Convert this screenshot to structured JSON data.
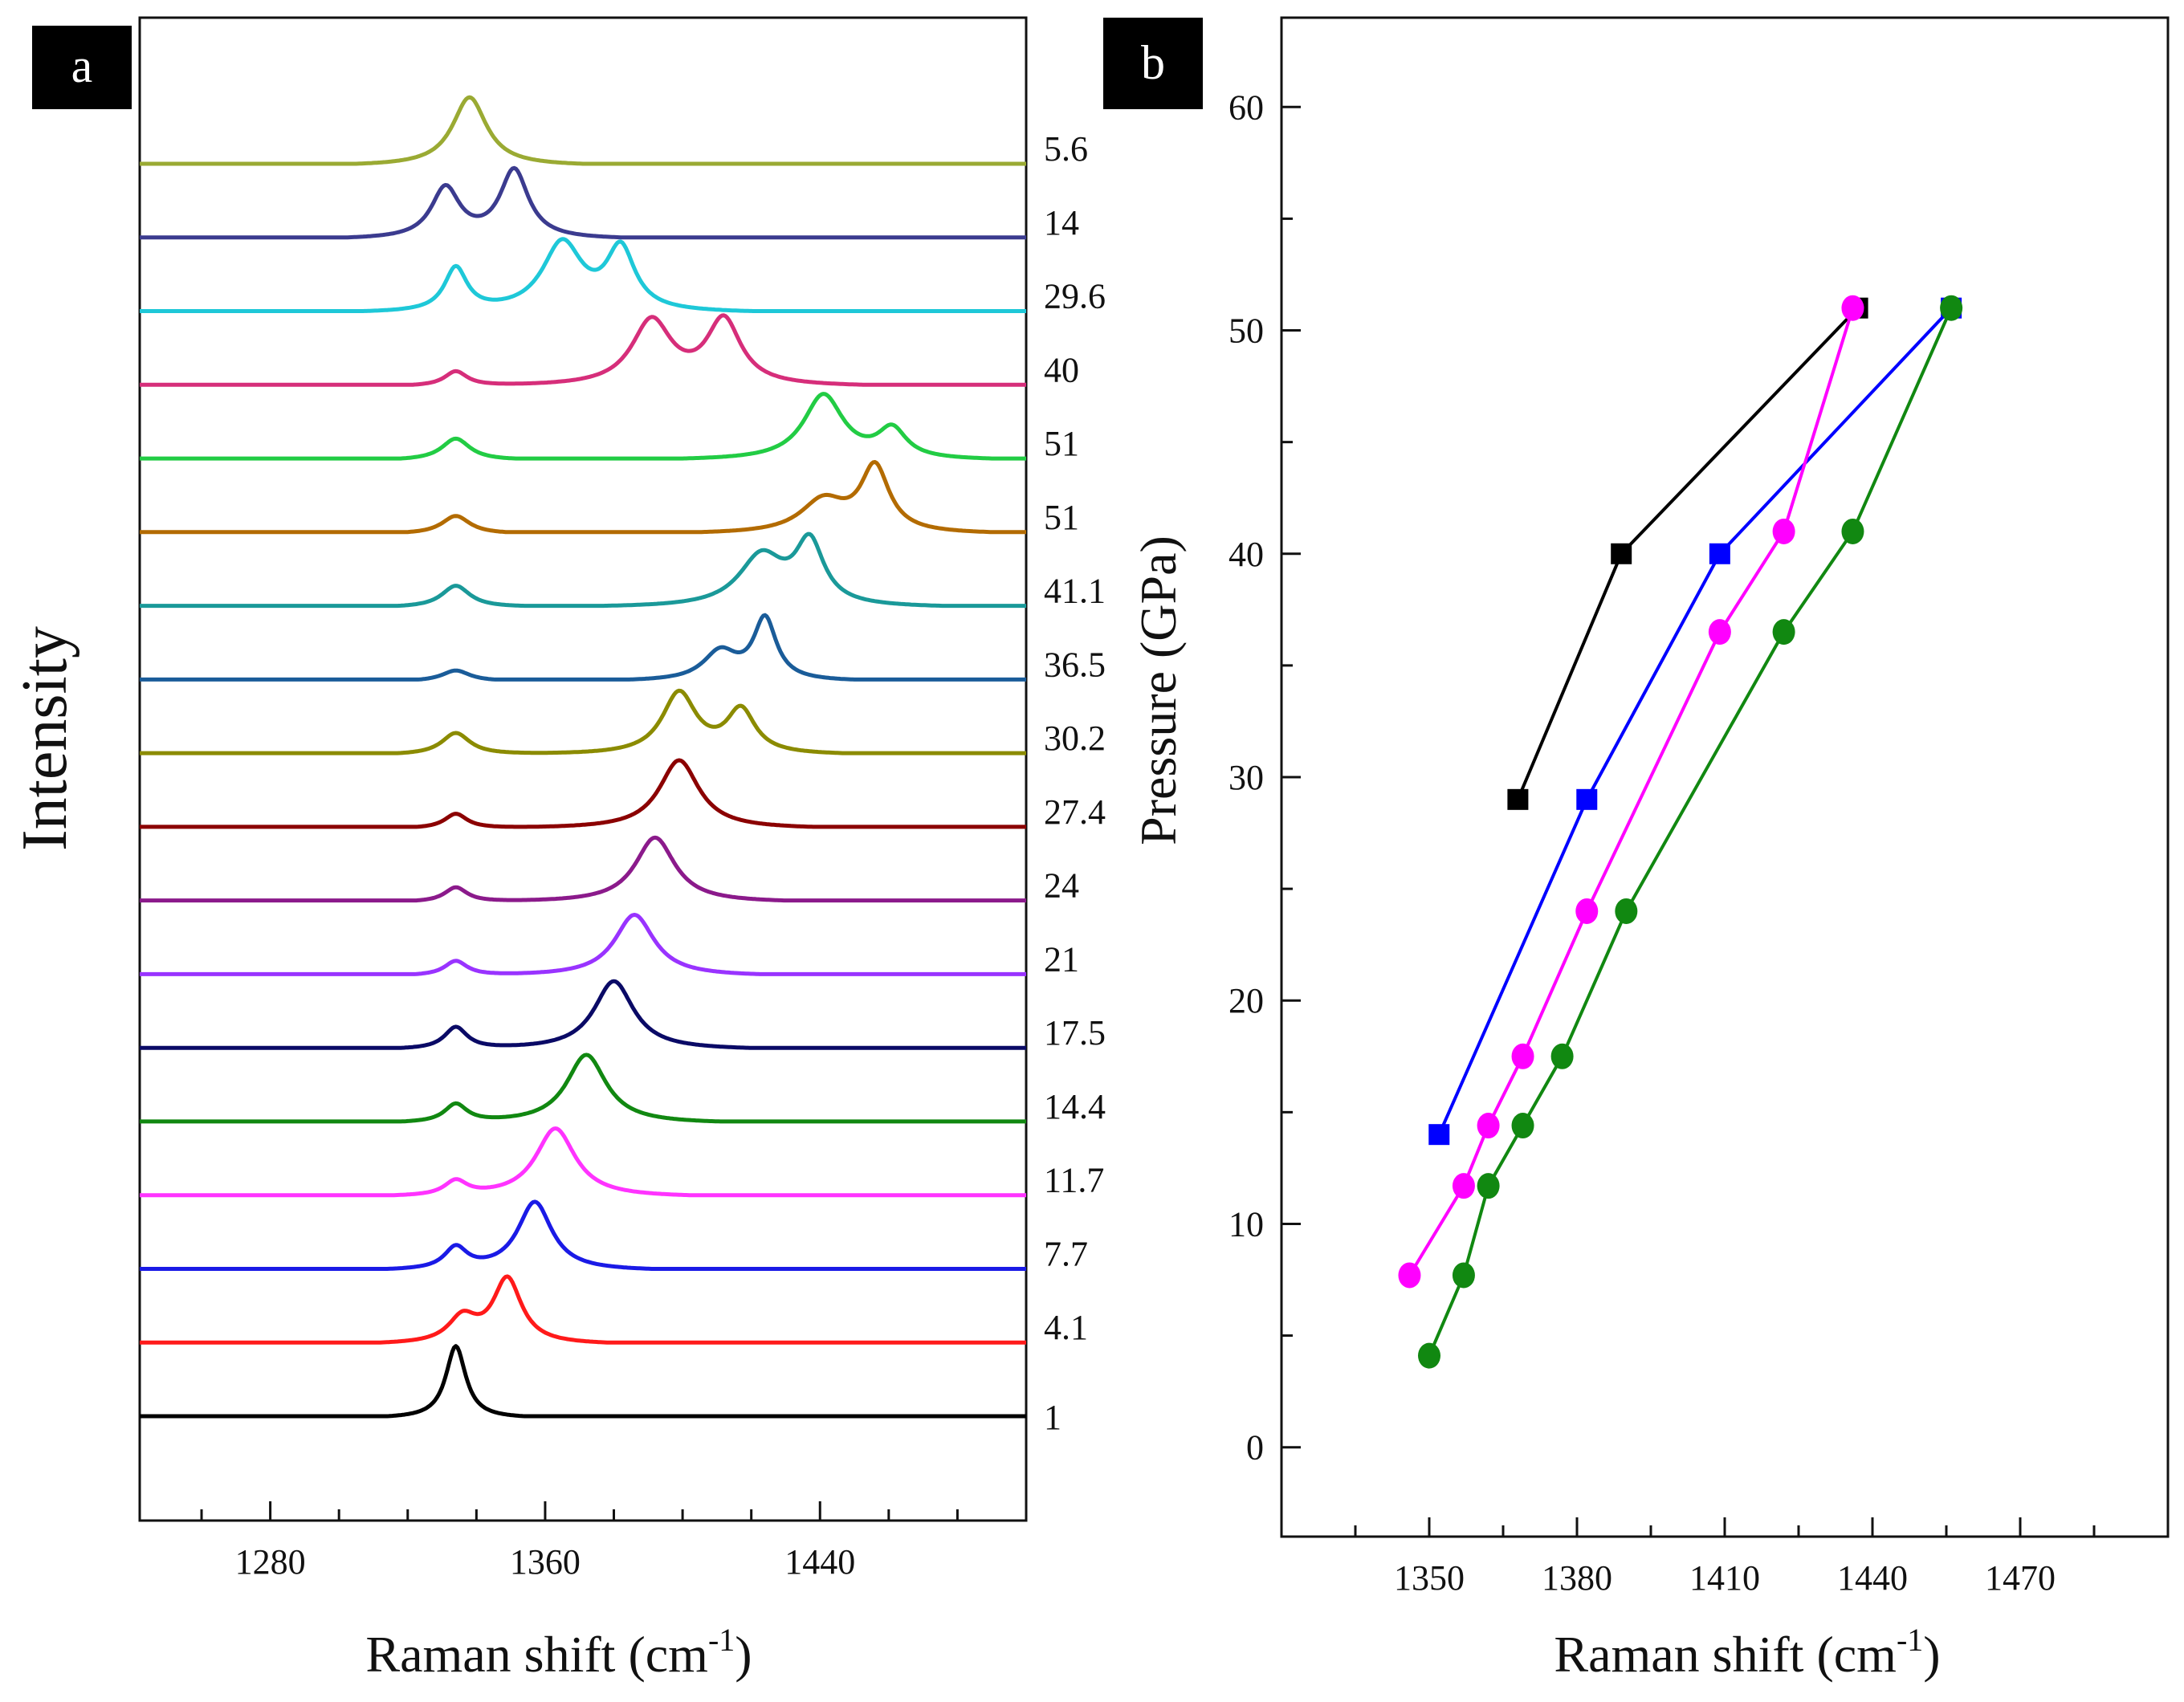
{
  "chart_data": [
    {
      "panel": "a",
      "type": "line",
      "title": "",
      "xlabel": "Raman shift (cm",
      "xlabel_sup": "-1",
      "xlabel_close": ")",
      "ylabel": "Intensity",
      "xlim": [
        1242,
        1500
      ],
      "xticks": [
        1280,
        1360,
        1440
      ],
      "grid": false,
      "series": [
        {
          "name": "1",
          "color": "#000000",
          "peaks": [
            [
              1334,
              1.0,
              3.5
            ]
          ]
        },
        {
          "name": "4.1",
          "color": "#ff1a1a",
          "peaks": [
            [
              1336,
              0.35,
              5
            ],
            [
              1349,
              0.9,
              5
            ]
          ]
        },
        {
          "name": "7.7",
          "color": "#1a1ae6",
          "peaks": [
            [
              1334,
              0.3,
              4
            ],
            [
              1357,
              0.95,
              6
            ]
          ]
        },
        {
          "name": "11.7",
          "color": "#ff33ff",
          "peaks": [
            [
              1334,
              0.2,
              4
            ],
            [
              1363,
              0.95,
              7
            ]
          ]
        },
        {
          "name": "14.4",
          "color": "#118811",
          "peaks": [
            [
              1334,
              0.25,
              4
            ],
            [
              1372,
              0.95,
              7
            ]
          ]
        },
        {
          "name": "17.5",
          "color": "#0a0a66",
          "peaks": [
            [
              1334,
              0.3,
              4
            ],
            [
              1380,
              0.95,
              7
            ]
          ]
        },
        {
          "name": "21",
          "color": "#9933ff",
          "peaks": [
            [
              1334,
              0.2,
              4
            ],
            [
              1386,
              0.85,
              7
            ]
          ]
        },
        {
          "name": "24",
          "color": "#8b1a8b",
          "peaks": [
            [
              1334,
              0.2,
              4
            ],
            [
              1392,
              0.9,
              7
            ]
          ]
        },
        {
          "name": "27.4",
          "color": "#8b0000",
          "peaks": [
            [
              1334,
              0.2,
              4
            ],
            [
              1399,
              0.95,
              7
            ]
          ]
        },
        {
          "name": "30.2",
          "color": "#8b8b00",
          "peaks": [
            [
              1334,
              0.3,
              5
            ],
            [
              1399,
              0.85,
              6
            ],
            [
              1417,
              0.6,
              5
            ]
          ]
        },
        {
          "name": "36.5",
          "color": "#1a5c99",
          "peaks": [
            [
              1334,
              0.15,
              5
            ],
            [
              1411,
              0.4,
              6
            ],
            [
              1424,
              0.85,
              4
            ]
          ]
        },
        {
          "name": "41.1",
          "color": "#1a9999",
          "peaks": [
            [
              1334,
              0.3,
              5
            ],
            [
              1423,
              0.7,
              8
            ],
            [
              1437,
              0.85,
              5
            ]
          ]
        },
        {
          "name": "51",
          "color": "#b36b00",
          "peaks": [
            [
              1334,
              0.25,
              5
            ],
            [
              1441,
              0.45,
              8
            ],
            [
              1456,
              0.9,
              5
            ]
          ]
        },
        {
          "name": "51",
          "color": "#22cc44",
          "peaks": [
            [
              1334,
              0.3,
              5
            ],
            [
              1441,
              0.9,
              7
            ],
            [
              1461,
              0.4,
              5
            ]
          ]
        },
        {
          "name": "40",
          "color": "#d62e7a",
          "peaks": [
            [
              1334,
              0.2,
              4
            ],
            [
              1391,
              0.9,
              7
            ],
            [
              1412,
              0.9,
              6
            ]
          ]
        },
        {
          "name": "29.6",
          "color": "#1ec8d8",
          "peaks": [
            [
              1334,
              0.6,
              4
            ],
            [
              1365,
              0.95,
              7
            ],
            [
              1382,
              0.85,
              5
            ]
          ]
        },
        {
          "name": "14",
          "color": "#3b3b8f",
          "peaks": [
            [
              1331,
              0.7,
              5
            ],
            [
              1351,
              0.95,
              5
            ]
          ]
        },
        {
          "name": "5.6",
          "color": "#9aaa33",
          "peaks": [
            [
              1338,
              0.95,
              6
            ]
          ]
        }
      ]
    },
    {
      "panel": "b",
      "type": "scatter",
      "title": "",
      "xlabel": "Raman shift (cm",
      "xlabel_sup": "-1",
      "xlabel_close": ")",
      "ylabel": "Pressure (GPa)",
      "xlim": [
        1320,
        1500
      ],
      "ylim": [
        -4,
        64
      ],
      "xticks": [
        1350,
        1380,
        1410,
        1440,
        1470
      ],
      "yticks": [
        0,
        10,
        20,
        30,
        40,
        50,
        60
      ],
      "grid": false,
      "series": [
        {
          "name": "black-squares",
          "color": "#000000",
          "marker": "square",
          "points": [
            [
              1368,
              29
            ],
            [
              1389,
              40
            ],
            [
              1437,
              51
            ]
          ]
        },
        {
          "name": "blue-squares",
          "color": "#0000ff",
          "marker": "square",
          "points": [
            [
              1352,
              14
            ],
            [
              1382,
              29
            ],
            [
              1409,
              40
            ],
            [
              1456,
              51
            ]
          ]
        },
        {
          "name": "magenta-circles",
          "color": "#ff00ff",
          "marker": "circle",
          "points": [
            [
              1346,
              7.7
            ],
            [
              1357,
              11.7
            ],
            [
              1362,
              14.4
            ],
            [
              1369,
              17.5
            ],
            [
              1382,
              24
            ],
            [
              1409,
              36.5
            ],
            [
              1422,
              41
            ],
            [
              1436,
              51
            ]
          ]
        },
        {
          "name": "green-circles",
          "color": "#118811",
          "marker": "circle",
          "points": [
            [
              1350,
              4.1
            ],
            [
              1357,
              7.7
            ],
            [
              1362,
              11.7
            ],
            [
              1369,
              14.4
            ],
            [
              1377,
              17.5
            ],
            [
              1390,
              24
            ],
            [
              1422,
              36.5
            ],
            [
              1436,
              41
            ],
            [
              1456,
              51
            ]
          ]
        }
      ]
    }
  ]
}
